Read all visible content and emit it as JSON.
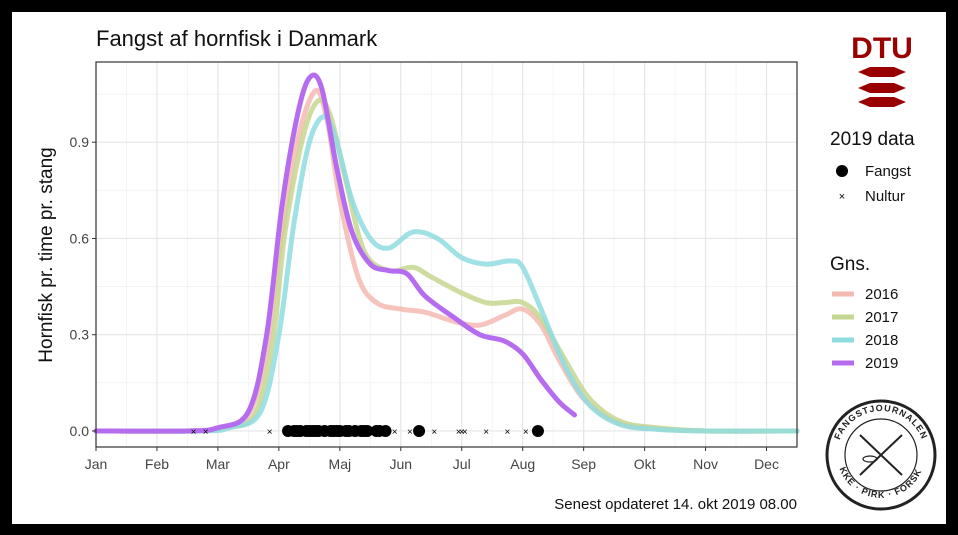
{
  "chart_data": {
    "type": "line",
    "title": "Fangst af hornfisk i Danmark",
    "ylabel": "Hornfisk pr. time pr. stang",
    "xlabel": "",
    "x_ticks": [
      "Jan",
      "Feb",
      "Mar",
      "Apr",
      "Maj",
      "Jun",
      "Jul",
      "Aug",
      "Sep",
      "Okt",
      "Nov",
      "Dec"
    ],
    "y_ticks": [
      "0.0",
      "0.3",
      "0.6",
      "0.9"
    ],
    "xlim": [
      1,
      12.5
    ],
    "ylim": [
      -0.05,
      1.15
    ],
    "grid": true,
    "legend_placement": "right",
    "series": [
      {
        "name": "2016",
        "color": "#F4B9B2",
        "points": [
          [
            1,
            0
          ],
          [
            2.5,
            0
          ],
          [
            3,
            0.01
          ],
          [
            3.5,
            0.05
          ],
          [
            3.8,
            0.25
          ],
          [
            4.0,
            0.55
          ],
          [
            4.3,
            0.9
          ],
          [
            4.6,
            1.06
          ],
          [
            4.8,
            0.96
          ],
          [
            5.0,
            0.72
          ],
          [
            5.3,
            0.48
          ],
          [
            5.6,
            0.4
          ],
          [
            6.0,
            0.38
          ],
          [
            6.4,
            0.37
          ],
          [
            6.9,
            0.34
          ],
          [
            7.3,
            0.33
          ],
          [
            7.7,
            0.36
          ],
          [
            8.0,
            0.38
          ],
          [
            8.3,
            0.33
          ],
          [
            8.6,
            0.22
          ],
          [
            9.0,
            0.1
          ],
          [
            9.5,
            0.03
          ],
          [
            10.0,
            0.01
          ],
          [
            11,
            0
          ],
          [
            12.5,
            0
          ]
        ]
      },
      {
        "name": "2017",
        "color": "#C5D68E",
        "points": [
          [
            1,
            0
          ],
          [
            2.6,
            0
          ],
          [
            3.1,
            0.01
          ],
          [
            3.6,
            0.05
          ],
          [
            3.9,
            0.28
          ],
          [
            4.1,
            0.62
          ],
          [
            4.4,
            0.92
          ],
          [
            4.65,
            1.03
          ],
          [
            4.85,
            0.98
          ],
          [
            5.1,
            0.78
          ],
          [
            5.4,
            0.56
          ],
          [
            5.8,
            0.5
          ],
          [
            6.2,
            0.51
          ],
          [
            6.5,
            0.48
          ],
          [
            7.0,
            0.43
          ],
          [
            7.4,
            0.4
          ],
          [
            7.7,
            0.4
          ],
          [
            8.0,
            0.4
          ],
          [
            8.3,
            0.35
          ],
          [
            8.7,
            0.22
          ],
          [
            9.1,
            0.1
          ],
          [
            9.6,
            0.03
          ],
          [
            10.2,
            0.01
          ],
          [
            11,
            0
          ],
          [
            12.5,
            0
          ]
        ]
      },
      {
        "name": "2018",
        "color": "#8FDCE0",
        "points": [
          [
            1,
            0
          ],
          [
            2.7,
            0
          ],
          [
            3.2,
            0.01
          ],
          [
            3.7,
            0.06
          ],
          [
            4.0,
            0.3
          ],
          [
            4.25,
            0.65
          ],
          [
            4.5,
            0.9
          ],
          [
            4.75,
            0.98
          ],
          [
            4.95,
            0.9
          ],
          [
            5.2,
            0.72
          ],
          [
            5.5,
            0.6
          ],
          [
            5.8,
            0.57
          ],
          [
            6.2,
            0.62
          ],
          [
            6.6,
            0.6
          ],
          [
            7.0,
            0.54
          ],
          [
            7.4,
            0.52
          ],
          [
            7.8,
            0.53
          ],
          [
            8.0,
            0.51
          ],
          [
            8.3,
            0.38
          ],
          [
            8.7,
            0.2
          ],
          [
            9.1,
            0.08
          ],
          [
            9.6,
            0.02
          ],
          [
            10.2,
            0.005
          ],
          [
            11,
            0
          ],
          [
            12.5,
            0
          ]
        ]
      },
      {
        "name": "2019",
        "color": "#B56CEF",
        "points": [
          [
            1,
            0
          ],
          [
            2.5,
            0
          ],
          [
            3.0,
            0.01
          ],
          [
            3.5,
            0.06
          ],
          [
            3.8,
            0.3
          ],
          [
            4.05,
            0.7
          ],
          [
            4.3,
            0.98
          ],
          [
            4.5,
            1.1
          ],
          [
            4.7,
            1.07
          ],
          [
            4.95,
            0.82
          ],
          [
            5.2,
            0.62
          ],
          [
            5.5,
            0.52
          ],
          [
            5.8,
            0.5
          ],
          [
            6.1,
            0.49
          ],
          [
            6.4,
            0.42
          ],
          [
            6.9,
            0.35
          ],
          [
            7.3,
            0.3
          ],
          [
            7.7,
            0.28
          ],
          [
            8.0,
            0.24
          ],
          [
            8.3,
            0.16
          ],
          [
            8.6,
            0.09
          ],
          [
            8.85,
            0.05
          ]
        ]
      }
    ],
    "points_2019": {
      "fangst": [
        4.15,
        4.25,
        4.3,
        4.35,
        4.45,
        4.5,
        4.55,
        4.6,
        4.65,
        4.75,
        4.85,
        4.9,
        4.95,
        5.0,
        5.1,
        5.15,
        5.25,
        5.35,
        5.4,
        5.45,
        5.6,
        5.65,
        5.75,
        6.3,
        8.25
      ],
      "nultur": [
        2.6,
        2.8,
        3.85,
        4.1,
        5.55,
        5.9,
        6.15,
        6.55,
        6.95,
        7.0,
        7.4,
        7.75,
        7.05,
        8.05
      ]
    },
    "legend": {
      "data_title": "2019 data",
      "fangst_label": "Fangst",
      "nultur_label": "Nultur",
      "gns_title": "Gns."
    }
  },
  "footer": {
    "updated": "Senest opdateret 14. okt 2019 08.00"
  },
  "logos": {
    "dtu_text": "DTU",
    "journal_top": "FANGSTJOURNALEN",
    "journal_bottom": "STRIKKE · PIRK · FORSKNING"
  },
  "colors": {
    "dtu_red": "#990000",
    "plot_border": "#333333",
    "grid": "#EBEBEB"
  }
}
